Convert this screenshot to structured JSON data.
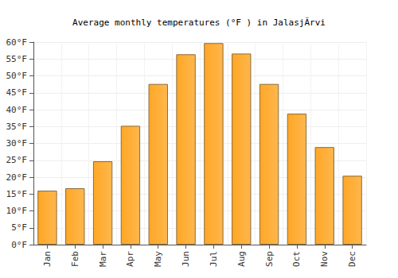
{
  "chart_data": {
    "type": "bar",
    "title": "Average monthly temperatures (°F ) in JalasjÃrvi",
    "categories": [
      "Jan",
      "Feb",
      "Mar",
      "Apr",
      "May",
      "Jun",
      "Jul",
      "Aug",
      "Sep",
      "Oct",
      "Nov",
      "Dec"
    ],
    "values": [
      16,
      16.7,
      24.7,
      35.2,
      47.6,
      56.4,
      59.7,
      56.6,
      47.6,
      38.8,
      28.9,
      20.4
    ],
    "color": "#ffa726",
    "ylim": [
      0,
      60
    ],
    "yticks": [
      {
        "value": 0,
        "label": "0°F"
      },
      {
        "value": 5,
        "label": "5°F"
      },
      {
        "value": 10,
        "label": "10°F"
      },
      {
        "value": 15,
        "label": "15°F"
      },
      {
        "value": 20,
        "label": "20°F"
      },
      {
        "value": 25,
        "label": "25°F"
      },
      {
        "value": 30,
        "label": "30°F"
      },
      {
        "value": 35,
        "label": "35°F"
      },
      {
        "value": 40,
        "label": "40°F"
      },
      {
        "value": 45,
        "label": "45°F"
      },
      {
        "value": 50,
        "label": "50°F"
      },
      {
        "value": 55,
        "label": "55°F"
      },
      {
        "value": 60,
        "label": "60°F"
      }
    ],
    "grid": true
  }
}
